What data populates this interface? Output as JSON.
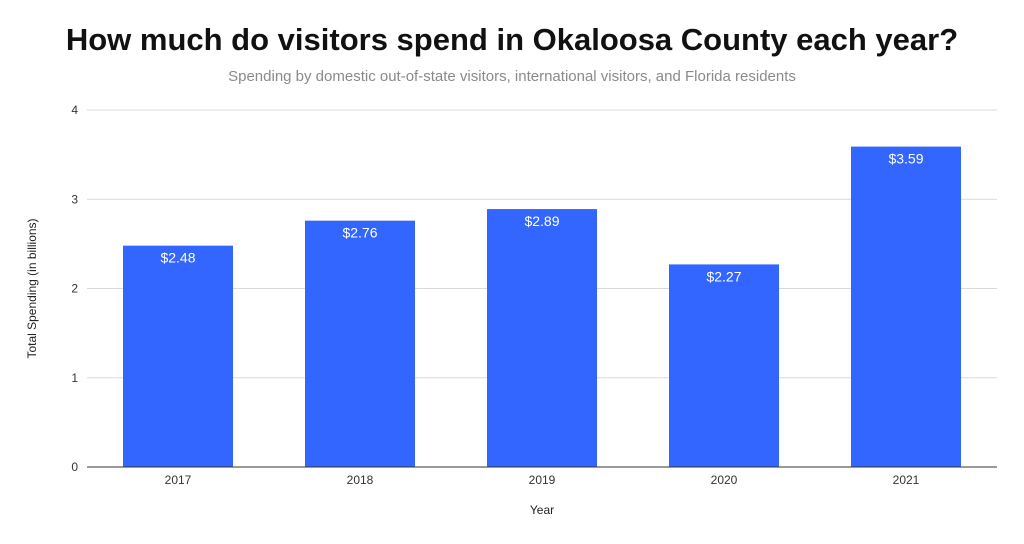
{
  "chart_data": {
    "type": "bar",
    "title": "How much do visitors spend in Okaloosa County each year?",
    "subtitle": "Spending by domestic out-of-state visitors, international visitors, and Florida residents",
    "xlabel": "Year",
    "ylabel": "Total Spending (in billions)",
    "categories": [
      "2017",
      "2018",
      "2019",
      "2020",
      "2021"
    ],
    "values": [
      2.48,
      2.76,
      2.89,
      2.27,
      3.59
    ],
    "data_labels": [
      "$2.48",
      "$2.76",
      "$2.89",
      "$2.27",
      "$3.59"
    ],
    "ylim": [
      0,
      4
    ],
    "yticks": [
      "0",
      "1",
      "2",
      "3",
      "4"
    ],
    "grid": true,
    "bar_color": "#3366ff",
    "legend": "none"
  }
}
